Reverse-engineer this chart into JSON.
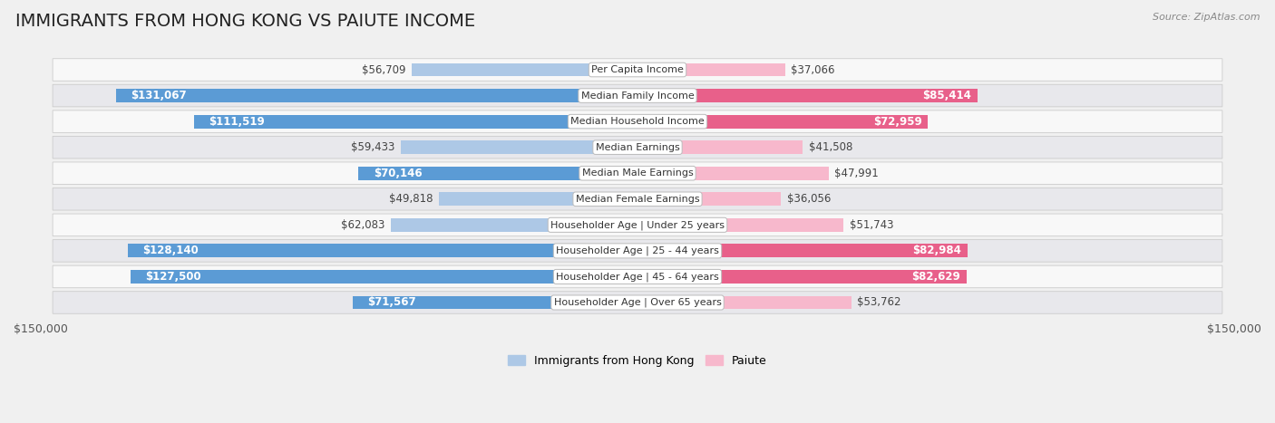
{
  "title": "IMMIGRANTS FROM HONG KONG VS PAIUTE INCOME",
  "source": "Source: ZipAtlas.com",
  "categories": [
    "Per Capita Income",
    "Median Family Income",
    "Median Household Income",
    "Median Earnings",
    "Median Male Earnings",
    "Median Female Earnings",
    "Householder Age | Under 25 years",
    "Householder Age | 25 - 44 years",
    "Householder Age | 45 - 64 years",
    "Householder Age | Over 65 years"
  ],
  "hk_values": [
    56709,
    131067,
    111519,
    59433,
    70146,
    49818,
    62083,
    128140,
    127500,
    71567
  ],
  "paiute_values": [
    37066,
    85414,
    72959,
    41508,
    47991,
    36056,
    51743,
    82984,
    82629,
    53762
  ],
  "hk_labels": [
    "$56,709",
    "$131,067",
    "$111,519",
    "$59,433",
    "$70,146",
    "$49,818",
    "$62,083",
    "$128,140",
    "$127,500",
    "$71,567"
  ],
  "paiute_labels": [
    "$37,066",
    "$85,414",
    "$72,959",
    "$41,508",
    "$47,991",
    "$36,056",
    "$51,743",
    "$82,984",
    "$82,629",
    "$53,762"
  ],
  "hk_color_light": "#adc8e6",
  "hk_color_dark": "#5b9bd5",
  "paiute_color_light": "#f7b8cc",
  "paiute_color_dark": "#e8608a",
  "bg_color": "#f0f0f0",
  "row_bg_light": "#f8f8f8",
  "row_bg_dark": "#e8e8ec",
  "max_value": 150000,
  "legend_hk": "Immigrants from Hong Kong",
  "legend_paiute": "Paiute",
  "title_fontsize": 14,
  "label_fontsize": 8.5,
  "category_fontsize": 8.0,
  "hk_inside_threshold": 70000,
  "paiute_inside_threshold": 60000
}
